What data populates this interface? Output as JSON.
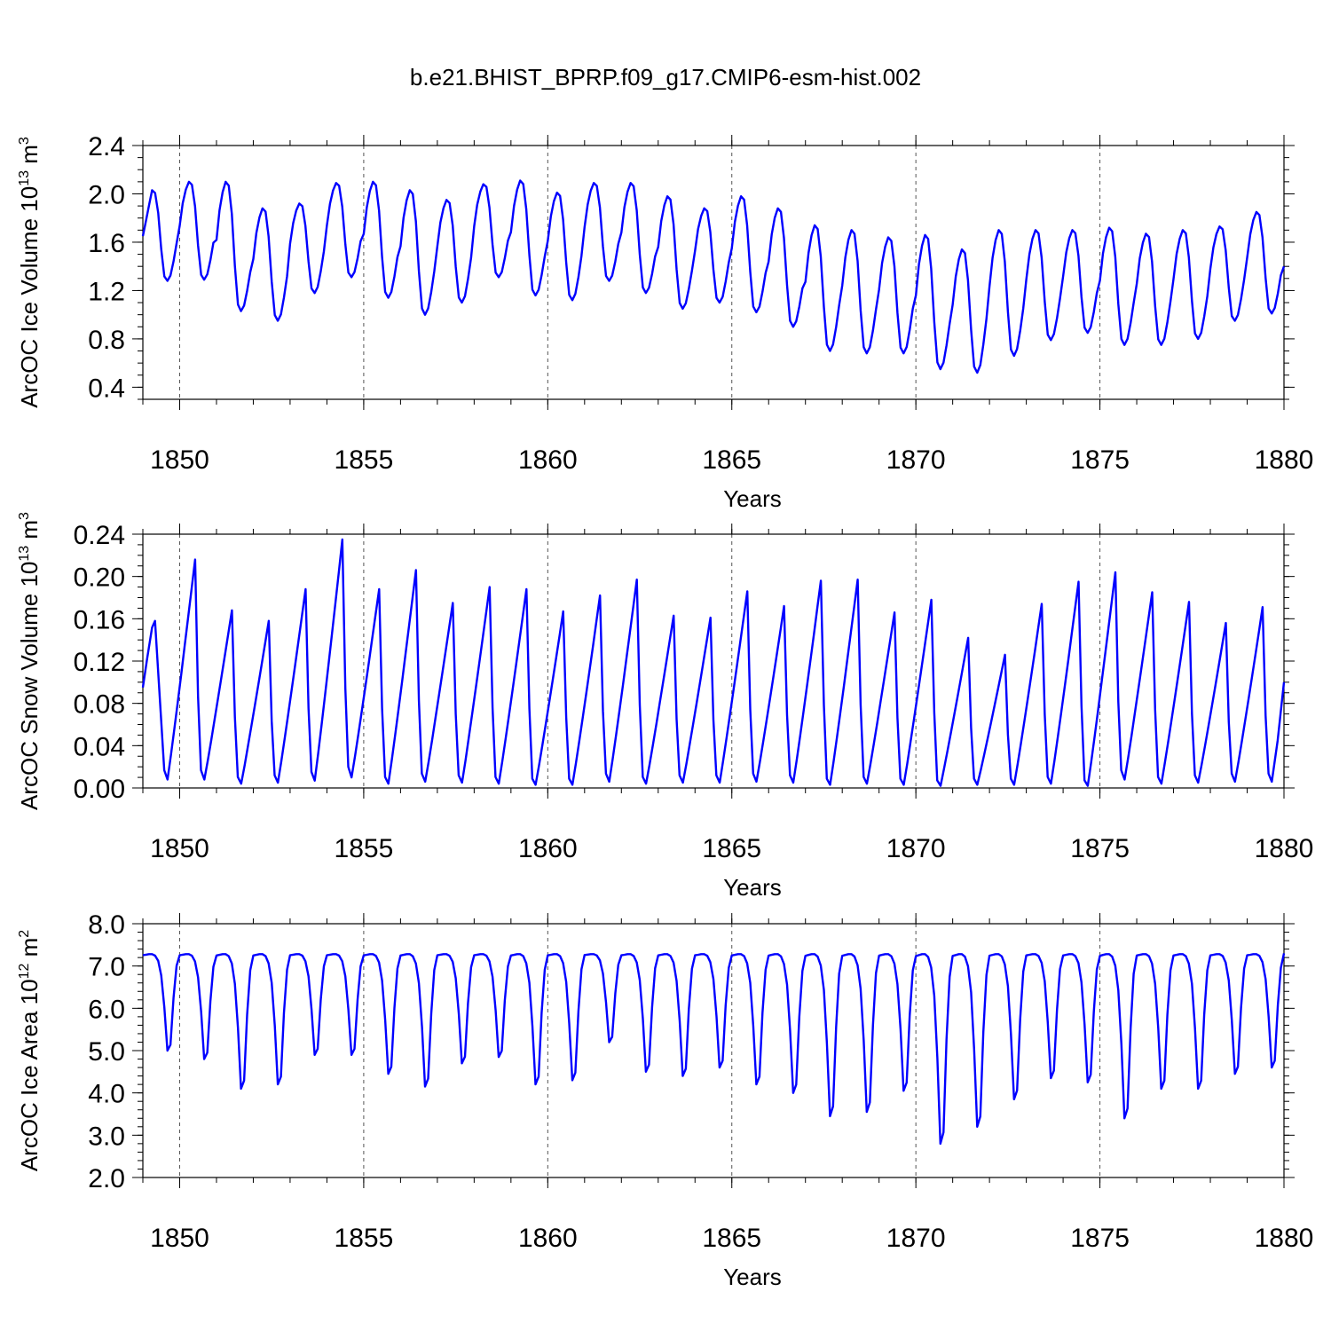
{
  "figure": {
    "title": "b.e21.BHIST_BPRP.f09_g17.CMIP6-esm-hist.002"
  },
  "chart_data": [
    {
      "type": "line",
      "ylabel": "ArcOC Ice Volume 10",
      "ylabel_exp": "13",
      "ylabel_unit": " m",
      "ylabel_unit_exp": "3",
      "xlabel": "Years",
      "xlim": [
        1849,
        1880
      ],
      "ylim": [
        0.3,
        2.4
      ],
      "y_ticks": [
        0.4,
        0.8,
        1.2,
        1.6,
        2.0,
        2.4
      ],
      "y_tick_labels": [
        "0.4",
        "0.8",
        "1.2",
        "1.6",
        "2.0",
        "2.4"
      ],
      "y_minor_step": 0.1,
      "x_ticks": [
        1850,
        1855,
        1860,
        1865,
        1870,
        1875,
        1880
      ],
      "x_tick_labels": [
        "1850",
        "1855",
        "1860",
        "1865",
        "1870",
        "1875",
        "1880"
      ],
      "grid_x": [
        1850,
        1855,
        1860,
        1865,
        1870,
        1875
      ],
      "series": [
        {
          "name": "ArcOC Ice Volume",
          "color": "#0000ff",
          "annual_min": [
            1.28,
            1.29,
            1.03,
            0.95,
            1.18,
            1.31,
            1.14,
            1.0,
            1.1,
            1.31,
            1.16,
            1.12,
            1.28,
            1.18,
            1.05,
            1.1,
            1.02,
            0.9,
            0.7,
            0.68,
            0.68,
            0.55,
            0.52,
            0.66,
            0.79,
            0.85,
            0.75,
            0.75,
            0.8,
            0.95,
            1.01
          ],
          "annual_max": [
            2.03,
            2.1,
            2.1,
            1.88,
            1.92,
            2.09,
            2.1,
            2.03,
            1.95,
            2.08,
            2.11,
            2.01,
            2.09,
            2.09,
            1.98,
            1.88,
            1.98,
            1.88,
            1.74,
            1.7,
            1.64,
            1.66,
            1.54,
            1.7,
            1.7,
            1.7,
            1.72,
            1.67,
            1.7,
            1.73,
            1.85
          ],
          "phase": "ice"
        }
      ]
    },
    {
      "type": "line",
      "ylabel": "ArcOC Snow Volume 10",
      "ylabel_exp": "13",
      "ylabel_unit": " m",
      "ylabel_unit_exp": "3",
      "xlabel": "Years",
      "xlim": [
        1849,
        1880
      ],
      "ylim": [
        0.0,
        0.24
      ],
      "y_ticks": [
        0.0,
        0.04,
        0.08,
        0.12,
        0.16,
        0.2,
        0.24
      ],
      "y_tick_labels": [
        "0.00",
        "0.04",
        "0.08",
        "0.12",
        "0.16",
        "0.20",
        "0.24"
      ],
      "y_minor_step": 0.01,
      "x_ticks": [
        1850,
        1855,
        1860,
        1865,
        1870,
        1875,
        1880
      ],
      "x_tick_labels": [
        "1850",
        "1855",
        "1860",
        "1865",
        "1870",
        "1875",
        "1880"
      ],
      "grid_x": [
        1850,
        1855,
        1860,
        1865,
        1870,
        1875
      ],
      "series": [
        {
          "name": "ArcOC Snow Volume",
          "color": "#0000ff",
          "annual_min": [
            0.008,
            0.008,
            0.004,
            0.005,
            0.007,
            0.01,
            0.004,
            0.006,
            0.005,
            0.004,
            0.003,
            0.003,
            0.006,
            0.004,
            0.005,
            0.005,
            0.006,
            0.005,
            0.003,
            0.004,
            0.003,
            0.002,
            0.003,
            0.003,
            0.004,
            0.002,
            0.008,
            0.004,
            0.005,
            0.006,
            0.006
          ],
          "annual_max": [
            0.158,
            0.216,
            0.168,
            0.158,
            0.188,
            0.235,
            0.188,
            0.206,
            0.175,
            0.19,
            0.188,
            0.167,
            0.182,
            0.197,
            0.163,
            0.161,
            0.186,
            0.172,
            0.196,
            0.197,
            0.166,
            0.178,
            0.142,
            0.126,
            0.174,
            0.195,
            0.204,
            0.185,
            0.176,
            0.156,
            0.171
          ],
          "start_value": 0.095,
          "end_value": 0.1,
          "phase": "snow"
        }
      ]
    },
    {
      "type": "line",
      "ylabel": "ArcOC Ice Area 10",
      "ylabel_exp": "12",
      "ylabel_unit": " m",
      "ylabel_unit_exp": "2",
      "xlabel": "Years",
      "xlim": [
        1849,
        1880
      ],
      "ylim": [
        2.0,
        8.0
      ],
      "y_ticks": [
        2.0,
        3.0,
        4.0,
        5.0,
        6.0,
        7.0,
        8.0
      ],
      "y_tick_labels": [
        "2.0",
        "3.0",
        "4.0",
        "5.0",
        "6.0",
        "7.0",
        "8.0"
      ],
      "y_minor_step": 0.2,
      "x_ticks": [
        1850,
        1855,
        1860,
        1865,
        1870,
        1875,
        1880
      ],
      "x_tick_labels": [
        "1850",
        "1855",
        "1860",
        "1865",
        "1870",
        "1875",
        "1880"
      ],
      "grid_x": [
        1850,
        1855,
        1860,
        1865,
        1870,
        1875
      ],
      "series": [
        {
          "name": "ArcOC Ice Area",
          "color": "#0000ff",
          "annual_min": [
            5.0,
            4.8,
            4.1,
            4.2,
            4.9,
            4.9,
            4.45,
            4.15,
            4.7,
            4.85,
            4.2,
            4.3,
            5.2,
            4.5,
            4.4,
            4.6,
            4.2,
            4.0,
            3.45,
            3.55,
            4.05,
            2.8,
            3.2,
            3.85,
            4.35,
            4.25,
            3.4,
            4.1,
            4.1,
            4.45,
            4.6
          ],
          "annual_max": [
            7.28,
            7.28,
            7.28,
            7.28,
            7.28,
            7.28,
            7.28,
            7.28,
            7.28,
            7.28,
            7.28,
            7.28,
            7.28,
            7.28,
            7.28,
            7.28,
            7.28,
            7.28,
            7.28,
            7.28,
            7.28,
            7.28,
            7.28,
            7.28,
            7.28,
            7.28,
            7.28,
            7.28,
            7.28,
            7.28,
            7.28
          ],
          "phase": "area"
        }
      ]
    }
  ]
}
